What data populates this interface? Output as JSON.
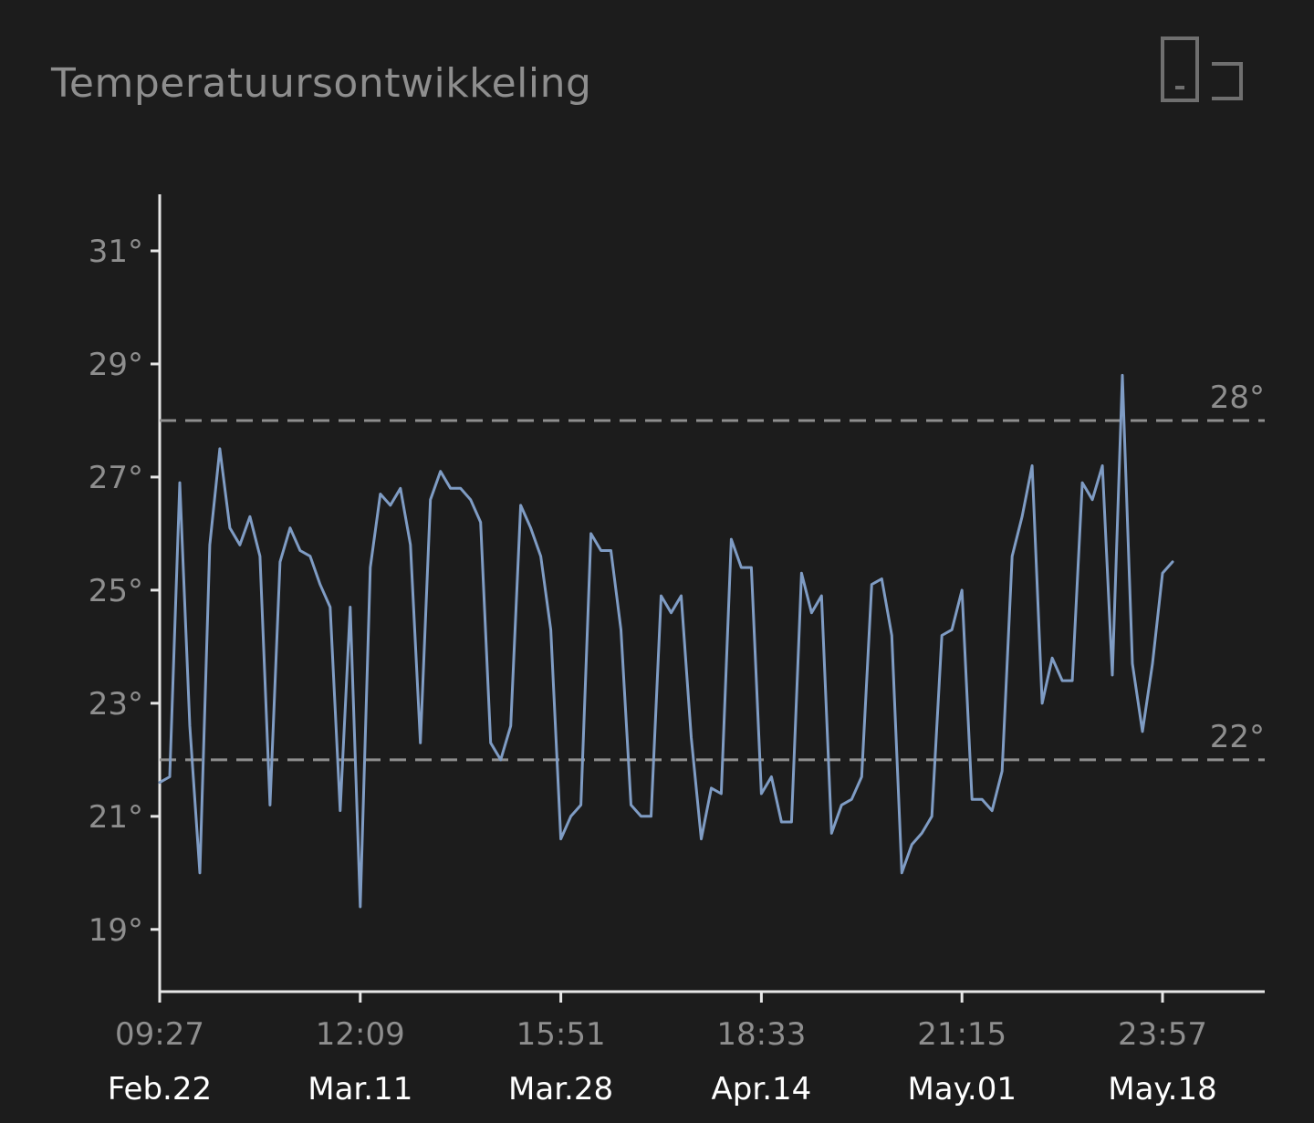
{
  "title": "Temperatuursontwikkeling",
  "toolbar": {
    "fullscreen_icon": "fullscreen-toggle-icon"
  },
  "colors": {
    "background": "#1c1c1c",
    "line": "#7f9cc4",
    "axis": "#e6e6e6",
    "text_muted": "#8e8e8e",
    "text_date": "#ffffff",
    "reference_line": "#8e8e8e"
  },
  "chart_data": {
    "type": "line",
    "title": "Temperatuursontwikkeling",
    "xlabel": "",
    "ylabel": "",
    "ylim": [
      17.9,
      32
    ],
    "y_ticks": [
      19,
      21,
      23,
      25,
      27,
      29,
      31
    ],
    "y_tick_labels": [
      "19°",
      "21°",
      "23°",
      "25°",
      "27°",
      "29°",
      "31°"
    ],
    "x_ticks": [
      {
        "time": "09:27",
        "date": "Feb.22",
        "index": 0
      },
      {
        "time": "12:09",
        "date": "Mar.11",
        "index": 20
      },
      {
        "time": "15:51",
        "date": "Mar.28",
        "index": 40
      },
      {
        "time": "18:33",
        "date": "Apr.14",
        "index": 60
      },
      {
        "time": "21:15",
        "date": "May.01",
        "index": 80
      },
      {
        "time": "23:57",
        "date": "May.18",
        "index": 100
      }
    ],
    "x_range": [
      0,
      110
    ],
    "reference_lines": [
      {
        "value": 28,
        "label": "28°"
      },
      {
        "value": 22,
        "label": "22°"
      }
    ],
    "grid": false,
    "legend": "none",
    "series": [
      {
        "values": [
          21.6,
          21.7,
          26.9,
          22.6,
          20.0,
          25.8,
          27.5,
          26.1,
          25.8,
          26.3,
          25.6,
          21.2,
          25.5,
          26.1,
          25.7,
          25.6,
          25.1,
          24.7,
          21.1,
          24.7,
          19.4,
          25.4,
          26.7,
          26.5,
          26.8,
          25.8,
          22.3,
          26.6,
          27.1,
          26.8,
          26.8,
          26.6,
          26.2,
          22.3,
          22.0,
          22.6,
          26.5,
          26.1,
          25.6,
          24.3,
          20.6,
          21.0,
          21.2,
          26.0,
          25.7,
          25.7,
          24.3,
          21.2,
          21.0,
          21.0,
          24.9,
          24.6,
          24.9,
          22.4,
          20.6,
          21.5,
          21.4,
          25.9,
          25.4,
          25.4,
          21.4,
          21.7,
          20.9,
          20.9,
          25.3,
          24.6,
          24.9,
          20.7,
          21.2,
          21.3,
          21.7,
          25.1,
          25.2,
          24.2,
          20.0,
          20.5,
          20.7,
          21.0,
          24.2,
          24.3,
          25.0,
          21.3,
          21.3,
          21.1,
          21.8,
          25.6,
          26.3,
          27.2,
          23.0,
          23.8,
          23.4,
          23.4,
          26.9,
          26.6,
          27.2,
          23.5,
          28.8,
          23.7,
          22.5,
          23.7,
          25.3,
          25.5
        ]
      }
    ]
  }
}
